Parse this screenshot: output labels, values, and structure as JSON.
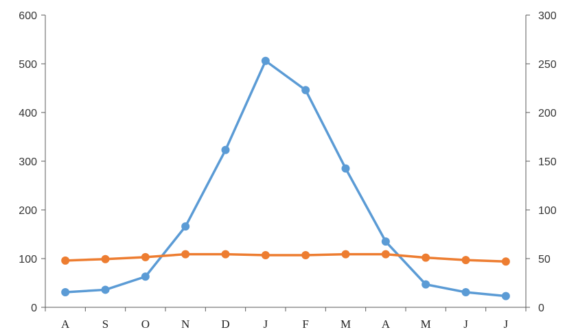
{
  "chart_data": {
    "type": "line",
    "categories": [
      "A",
      "S",
      "O",
      "N",
      "D",
      "J",
      "F",
      "M",
      "A",
      "M",
      "J",
      "J"
    ],
    "series": [
      {
        "axis": "left",
        "color": "#5B9BD5",
        "values": [
          31,
          36,
          63,
          166,
          323,
          506,
          446,
          285,
          135,
          47,
          31,
          23
        ]
      },
      {
        "axis": "right",
        "color": "#ED7D31",
        "values": [
          48,
          49.5,
          51.5,
          54.5,
          54.5,
          53.5,
          53.5,
          54.5,
          54.5,
          51,
          48.5,
          47
        ]
      }
    ],
    "y_left": {
      "min": 0,
      "max": 600,
      "ticks": [
        "0",
        "100",
        "200",
        "300",
        "400",
        "500",
        "600"
      ]
    },
    "y_right": {
      "min": 0,
      "max": 300,
      "ticks": [
        "0",
        "50",
        "100",
        "150",
        "200",
        "250",
        "300"
      ]
    },
    "grid": false,
    "legend": "none"
  }
}
